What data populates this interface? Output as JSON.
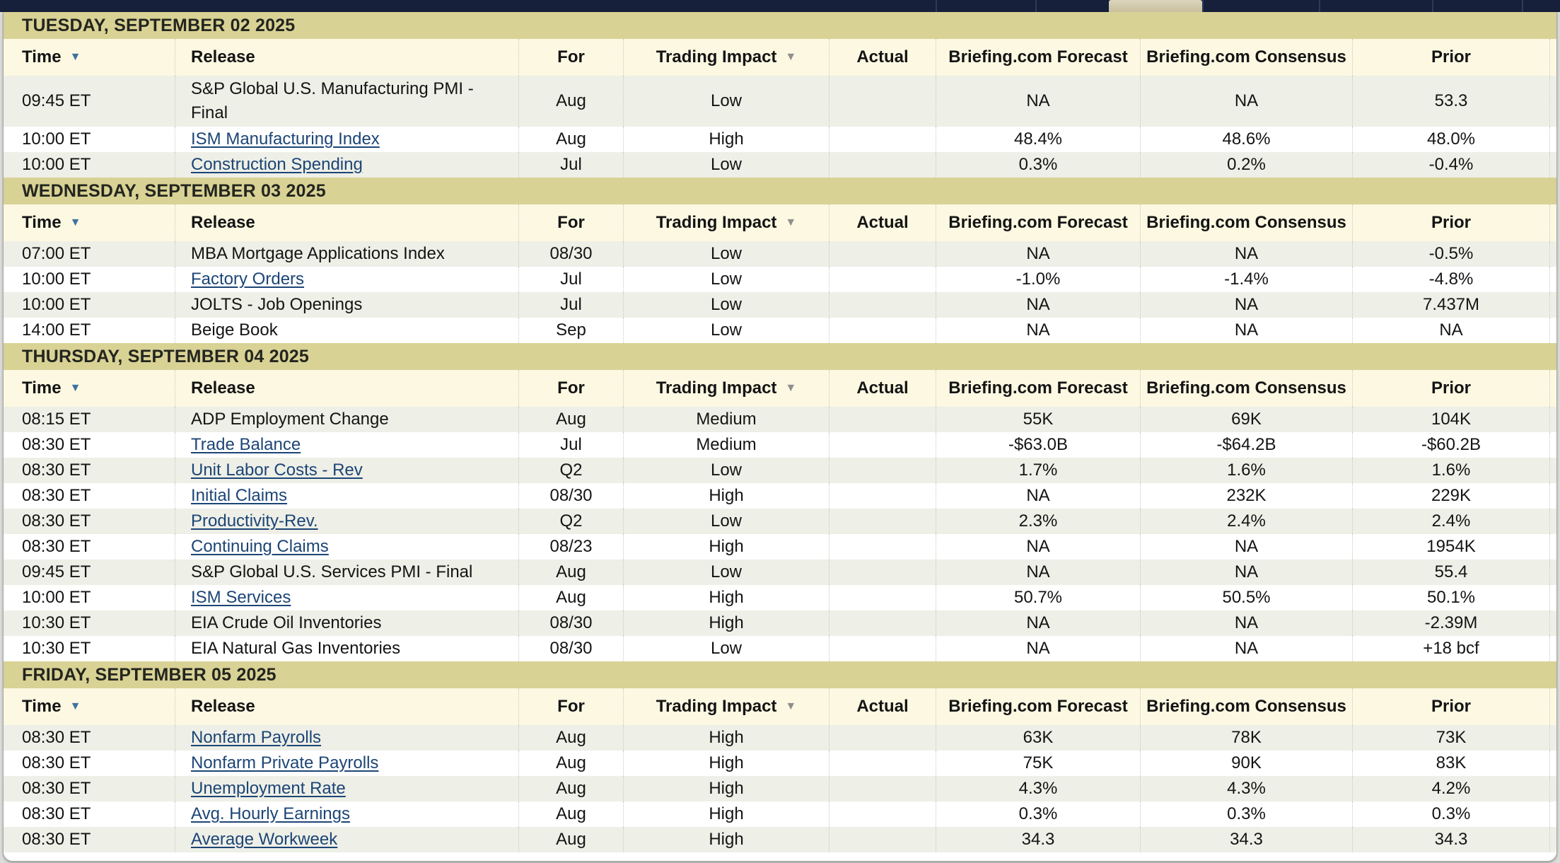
{
  "topbar": {
    "background": "#16203a",
    "divider_color": "#2b3a58",
    "active_tab_color": "#d3c9a8",
    "segment_widths": [
      1323,
      141,
      104,
      132,
      165,
      160,
      127,
      54
    ],
    "active_segment_index": 3
  },
  "colors": {
    "day_band": "#d9d295",
    "header_row": "#fcf8e2",
    "row_alt": "#eeefe7",
    "link": "#1c4576",
    "sort_arrow_time": "#3e729f",
    "sort_arrow_impact": "#8f8f8f"
  },
  "calendar": {
    "columns": [
      {
        "key": "time",
        "label": "Time",
        "sort_arrow": "blue"
      },
      {
        "key": "release",
        "label": "Release",
        "sort_arrow": null
      },
      {
        "key": "for",
        "label": "For",
        "sort_arrow": null
      },
      {
        "key": "impact",
        "label": "Trading Impact",
        "sort_arrow": "gray"
      },
      {
        "key": "actual",
        "label": "Actual",
        "sort_arrow": null
      },
      {
        "key": "forecast",
        "label": "Briefing.com Forecast",
        "sort_arrow": null
      },
      {
        "key": "consensus",
        "label": "Briefing.com Consensus",
        "sort_arrow": null
      },
      {
        "key": "prior",
        "label": "Prior",
        "sort_arrow": null
      }
    ],
    "days": [
      {
        "date": "TUESDAY, SEPTEMBER 02 2025",
        "rows": [
          {
            "time": "09:45 ET",
            "release": "S&P Global U.S. Manufacturing PMI - Final",
            "link": false,
            "for": "Aug",
            "impact": "Low",
            "actual": "",
            "forecast": "NA",
            "consensus": "NA",
            "prior": "53.3",
            "tall": true
          },
          {
            "time": "10:00 ET",
            "release": "ISM Manufacturing Index",
            "link": true,
            "for": "Aug",
            "impact": "High",
            "actual": "",
            "forecast": "48.4%",
            "consensus": "48.6%",
            "prior": "48.0%"
          },
          {
            "time": "10:00 ET",
            "release": "Construction Spending",
            "link": true,
            "for": "Jul",
            "impact": "Low",
            "actual": "",
            "forecast": "0.3%",
            "consensus": "0.2%",
            "prior": "-0.4%"
          }
        ]
      },
      {
        "date": "WEDNESDAY, SEPTEMBER 03 2025",
        "rows": [
          {
            "time": "07:00 ET",
            "release": "MBA Mortgage Applications Index",
            "link": false,
            "for": "08/30",
            "impact": "Low",
            "actual": "",
            "forecast": "NA",
            "consensus": "NA",
            "prior": "-0.5%"
          },
          {
            "time": "10:00 ET",
            "release": "Factory Orders",
            "link": true,
            "for": "Jul",
            "impact": "Low",
            "actual": "",
            "forecast": "-1.0%",
            "consensus": "-1.4%",
            "prior": "-4.8%"
          },
          {
            "time": "10:00 ET",
            "release": "JOLTS - Job Openings",
            "link": false,
            "for": "Jul",
            "impact": "Low",
            "actual": "",
            "forecast": "NA",
            "consensus": "NA",
            "prior": "7.437M"
          },
          {
            "time": "14:00 ET",
            "release": "Beige Book",
            "link": false,
            "for": "Sep",
            "impact": "Low",
            "actual": "",
            "forecast": "NA",
            "consensus": "NA",
            "prior": "NA"
          }
        ]
      },
      {
        "date": "THURSDAY, SEPTEMBER 04 2025",
        "rows": [
          {
            "time": "08:15 ET",
            "release": "ADP Employment Change",
            "link": false,
            "for": "Aug",
            "impact": "Medium",
            "actual": "",
            "forecast": "55K",
            "consensus": "69K",
            "prior": "104K"
          },
          {
            "time": "08:30 ET",
            "release": "Trade Balance",
            "link": true,
            "for": "Jul",
            "impact": "Medium",
            "actual": "",
            "forecast": "-$63.0B",
            "consensus": "-$64.2B",
            "prior": "-$60.2B"
          },
          {
            "time": "08:30 ET",
            "release": "Unit Labor Costs - Rev",
            "link": true,
            "for": "Q2",
            "impact": "Low",
            "actual": "",
            "forecast": "1.7%",
            "consensus": "1.6%",
            "prior": "1.6%"
          },
          {
            "time": "08:30 ET",
            "release": "Initial Claims",
            "link": true,
            "for": "08/30",
            "impact": "High",
            "actual": "",
            "forecast": "NA",
            "consensus": "232K",
            "prior": "229K"
          },
          {
            "time": "08:30 ET",
            "release": "Productivity-Rev.",
            "link": true,
            "for": "Q2",
            "impact": "Low",
            "actual": "",
            "forecast": "2.3%",
            "consensus": "2.4%",
            "prior": "2.4%"
          },
          {
            "time": "08:30 ET",
            "release": "Continuing Claims",
            "link": true,
            "for": "08/23",
            "impact": "High",
            "actual": "",
            "forecast": "NA",
            "consensus": "NA",
            "prior": "1954K"
          },
          {
            "time": "09:45 ET",
            "release": "S&P Global U.S. Services PMI - Final",
            "link": false,
            "for": "Aug",
            "impact": "Low",
            "actual": "",
            "forecast": "NA",
            "consensus": "NA",
            "prior": "55.4"
          },
          {
            "time": "10:00 ET",
            "release": "ISM Services",
            "link": true,
            "for": "Aug",
            "impact": "High",
            "actual": "",
            "forecast": "50.7%",
            "consensus": "50.5%",
            "prior": "50.1%"
          },
          {
            "time": "10:30 ET",
            "release": "EIA Crude Oil Inventories",
            "link": false,
            "for": "08/30",
            "impact": "High",
            "actual": "",
            "forecast": "NA",
            "consensus": "NA",
            "prior": "-2.39M"
          },
          {
            "time": "10:30 ET",
            "release": "EIA Natural Gas Inventories",
            "link": false,
            "for": "08/30",
            "impact": "Low",
            "actual": "",
            "forecast": "NA",
            "consensus": "NA",
            "prior": "+18 bcf"
          }
        ]
      },
      {
        "date": "FRIDAY, SEPTEMBER 05 2025",
        "rows": [
          {
            "time": "08:30 ET",
            "release": "Nonfarm Payrolls",
            "link": true,
            "for": "Aug",
            "impact": "High",
            "actual": "",
            "forecast": "63K",
            "consensus": "78K",
            "prior": "73K"
          },
          {
            "time": "08:30 ET",
            "release": "Nonfarm Private Payrolls",
            "link": true,
            "for": "Aug",
            "impact": "High",
            "actual": "",
            "forecast": "75K",
            "consensus": "90K",
            "prior": "83K"
          },
          {
            "time": "08:30 ET",
            "release": "Unemployment Rate",
            "link": true,
            "for": "Aug",
            "impact": "High",
            "actual": "",
            "forecast": "4.3%",
            "consensus": "4.3%",
            "prior": "4.2%"
          },
          {
            "time": "08:30 ET",
            "release": "Avg. Hourly Earnings",
            "link": true,
            "for": "Aug",
            "impact": "High",
            "actual": "",
            "forecast": "0.3%",
            "consensus": "0.3%",
            "prior": "0.3%"
          },
          {
            "time": "08:30 ET",
            "release": "Average Workweek",
            "link": true,
            "for": "Aug",
            "impact": "High",
            "actual": "",
            "forecast": "34.3",
            "consensus": "34.3",
            "prior": "34.3"
          }
        ]
      }
    ]
  }
}
